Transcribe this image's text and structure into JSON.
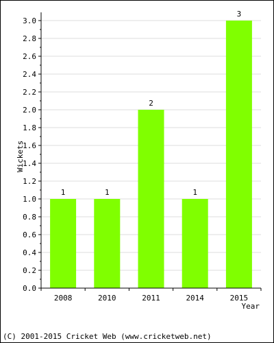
{
  "chart_data": {
    "type": "bar",
    "categories": [
      "2008",
      "2010",
      "2011",
      "2014",
      "2015"
    ],
    "values": [
      1,
      1,
      2,
      1,
      3
    ],
    "data_labels": [
      "1",
      "1",
      "2",
      "1",
      "3"
    ],
    "xlabel": "Year",
    "ylabel": "Wickets",
    "ylim": [
      0,
      3.0
    ],
    "y_ticks": [
      "0.0",
      "0.2",
      "0.4",
      "0.6",
      "0.8",
      "1.0",
      "1.2",
      "1.4",
      "1.6",
      "1.8",
      "2.0",
      "2.2",
      "2.4",
      "2.6",
      "2.8",
      "3.0"
    ],
    "grid": true,
    "bar_color": "#80ff00",
    "grid_color": "#dddddd"
  },
  "footer": {
    "text": "(C) 2001-2015 Cricket Web (www.cricketweb.net)"
  }
}
